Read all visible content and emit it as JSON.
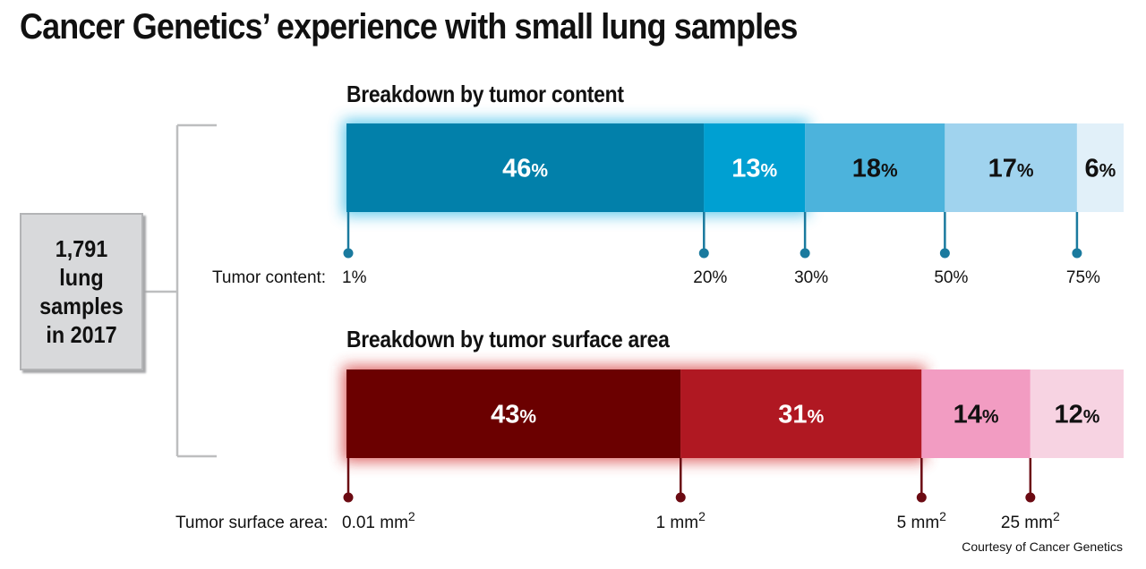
{
  "title": "Cancer Genetics’ experience with small lung samples",
  "summary": {
    "text": "1,791 lung samples in 2017"
  },
  "credit": "Courtesy of Cancer Genetics",
  "chart_data": [
    {
      "type": "bar",
      "orientation": "horizontal-stacked",
      "title": "Breakdown by tumor content",
      "axis_title": "Tumor content:",
      "categories": [
        "1%–20%",
        "20%–30%",
        "30%–50%",
        "50%–75%",
        "75%+"
      ],
      "values": [
        46,
        13,
        18,
        17,
        6
      ],
      "value_suffix": "%",
      "colors": [
        "#0280aa",
        "#00a0d2",
        "#4cb3dc",
        "#a0d3ee",
        "#e1f0f9"
      ],
      "label_colors": [
        "#ffffff",
        "#ffffff",
        "#111111",
        "#111111",
        "#111111"
      ],
      "glow_color": "#31b9e6",
      "glow_segments": 2,
      "tick_color": "#1a7a9e",
      "ticks": [
        {
          "label": "1%",
          "sup": "",
          "after_segment": 0
        },
        {
          "label": "20%",
          "sup": "",
          "after_segment": 1
        },
        {
          "label": "30%",
          "sup": "",
          "after_segment": 2
        },
        {
          "label": "50%",
          "sup": "",
          "after_segment": 3
        },
        {
          "label": "75%",
          "sup": "",
          "after_segment": 4
        }
      ]
    },
    {
      "type": "bar",
      "orientation": "horizontal-stacked",
      "title": "Breakdown by tumor surface area",
      "axis_title": "Tumor surface area:",
      "categories": [
        "0.01–1 mm2",
        "1–5 mm2",
        "5–25 mm2",
        "25+ mm2"
      ],
      "values": [
        43,
        31,
        14,
        12
      ],
      "value_suffix": "%",
      "colors": [
        "#6b0000",
        "#b01822",
        "#f29cc2",
        "#f7d3e2"
      ],
      "label_colors": [
        "#ffffff",
        "#ffffff",
        "#111111",
        "#111111"
      ],
      "glow_color": "#d33030",
      "glow_segments": 2,
      "tick_color": "#6b0a12",
      "ticks": [
        {
          "label": "0.01 mm",
          "sup": "2",
          "after_segment": 0
        },
        {
          "label": "1 mm",
          "sup": "2",
          "after_segment": 1
        },
        {
          "label": "5 mm",
          "sup": "2",
          "after_segment": 2
        },
        {
          "label": "25 mm",
          "sup": "2",
          "after_segment": 3
        }
      ]
    }
  ]
}
